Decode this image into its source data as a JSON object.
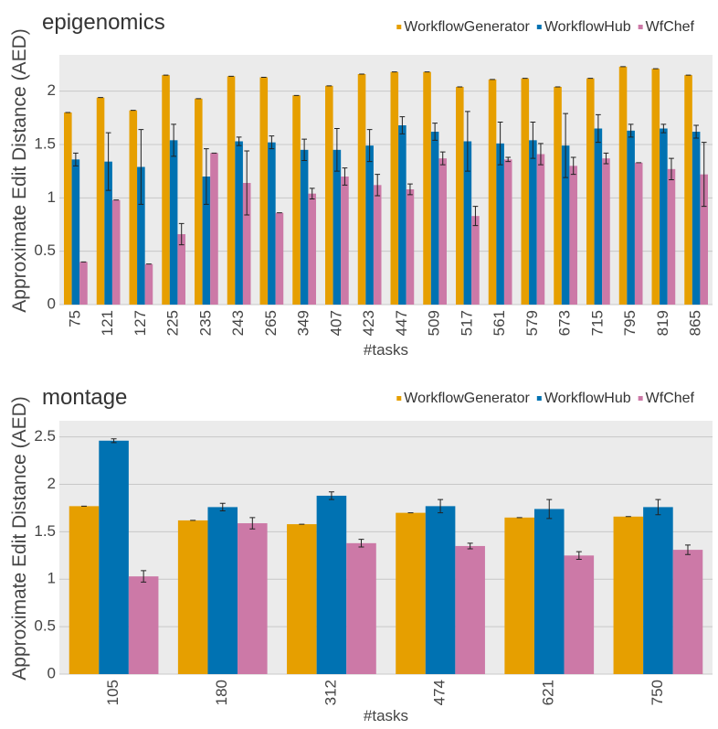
{
  "chart_data": [
    {
      "type": "bar",
      "title": "epigenomics",
      "x_label": "#tasks",
      "y_label": "Approximate Edit Distance (AED)",
      "categories": [
        "75",
        "121",
        "127",
        "225",
        "235",
        "243",
        "265",
        "349",
        "407",
        "423",
        "447",
        "509",
        "517",
        "561",
        "579",
        "673",
        "715",
        "795",
        "819",
        "865"
      ],
      "series": [
        {
          "name": "WorkflowGenerator",
          "color": "#e69f00",
          "values": [
            1.8,
            1.94,
            1.82,
            2.15,
            1.93,
            2.14,
            2.13,
            1.96,
            2.05,
            2.16,
            2.18,
            2.18,
            2.04,
            2.11,
            2.12,
            2.04,
            2.12,
            2.23,
            2.21,
            2.15
          ],
          "errors": [
            0,
            0,
            0,
            0,
            0,
            0,
            0,
            0,
            0,
            0,
            0,
            0,
            0,
            0,
            0,
            0,
            0,
            0,
            0,
            0
          ]
        },
        {
          "name": "WorkflowHub",
          "color": "#0072b2",
          "values": [
            1.36,
            1.34,
            1.29,
            1.54,
            1.2,
            1.53,
            1.52,
            1.45,
            1.45,
            1.49,
            1.68,
            1.62,
            1.53,
            1.51,
            1.54,
            1.49,
            1.65,
            1.63,
            1.65,
            1.62
          ],
          "errors": [
            0.06,
            0.27,
            0.35,
            0.15,
            0.26,
            0.04,
            0.06,
            0.1,
            0.2,
            0.15,
            0.08,
            0.08,
            0.28,
            0.2,
            0.17,
            0.3,
            0.13,
            0.06,
            0.04,
            0.06
          ]
        },
        {
          "name": "WfChef",
          "color": "#cc79a7",
          "values": [
            0.4,
            0.98,
            0.38,
            0.66,
            1.42,
            1.14,
            0.86,
            1.04,
            1.2,
            1.12,
            1.08,
            1.37,
            0.83,
            1.36,
            1.41,
            1.3,
            1.37,
            1.33,
            1.27,
            1.22
          ],
          "errors": [
            0,
            0,
            0,
            0.1,
            0,
            0.3,
            0,
            0.05,
            0.08,
            0.1,
            0.05,
            0.06,
            0.09,
            0.02,
            0.1,
            0.08,
            0.05,
            0,
            0.1,
            0.3
          ]
        }
      ],
      "ylim": [
        0,
        2.34
      ],
      "yticks": [
        0,
        0.5,
        1,
        1.5,
        2
      ],
      "grid": true
    },
    {
      "type": "bar",
      "title": "montage",
      "x_label": "#tasks",
      "y_label": "Approximate Edit Distance (AED)",
      "categories": [
        "105",
        "180",
        "312",
        "474",
        "621",
        "750"
      ],
      "series": [
        {
          "name": "WorkflowGenerator",
          "color": "#e69f00",
          "values": [
            1.77,
            1.62,
            1.58,
            1.7,
            1.65,
            1.66
          ],
          "errors": [
            0,
            0,
            0,
            0,
            0,
            0
          ]
        },
        {
          "name": "WorkflowHub",
          "color": "#0072b2",
          "values": [
            2.46,
            1.76,
            1.88,
            1.77,
            1.74,
            1.76
          ],
          "errors": [
            0.02,
            0.04,
            0.04,
            0.07,
            0.1,
            0.08
          ]
        },
        {
          "name": "WfChef",
          "color": "#cc79a7",
          "values": [
            1.03,
            1.59,
            1.38,
            1.35,
            1.25,
            1.31
          ],
          "errors": [
            0.06,
            0.06,
            0.04,
            0.03,
            0.04,
            0.05
          ]
        }
      ],
      "ylim": [
        0,
        2.67
      ],
      "yticks": [
        0,
        0.5,
        1,
        1.5,
        2,
        2.5
      ],
      "grid": true
    }
  ]
}
